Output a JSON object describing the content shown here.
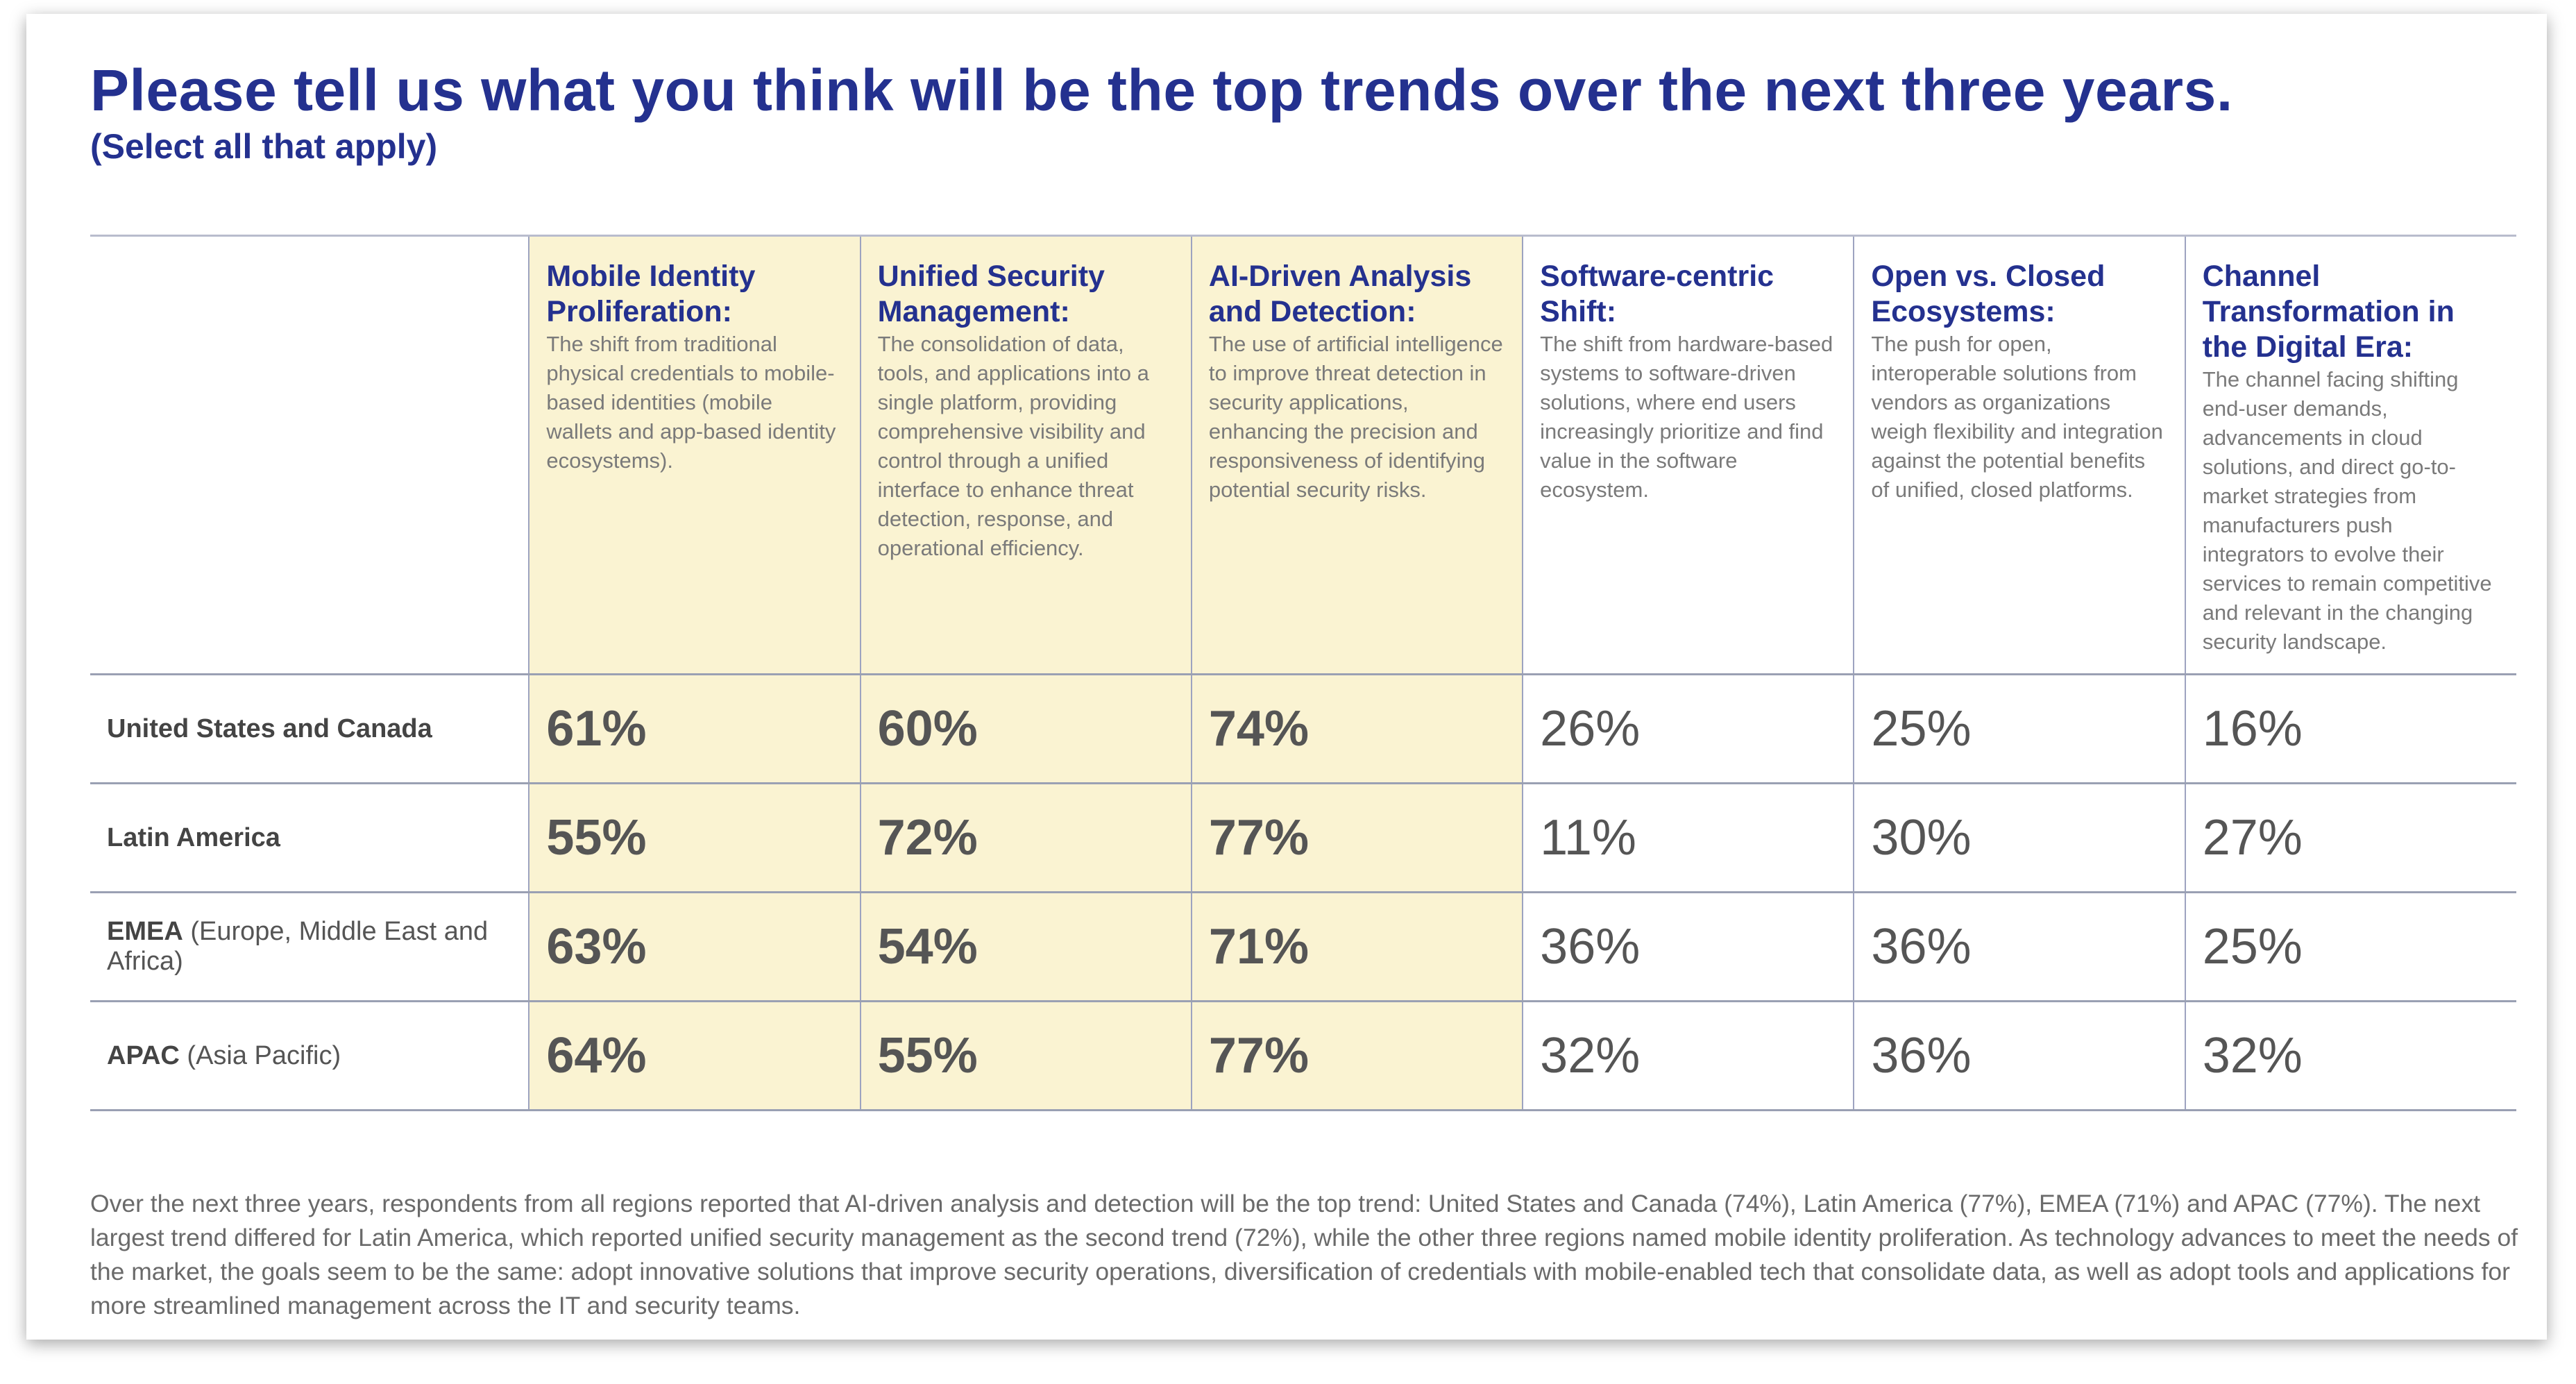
{
  "title": "Please tell us what you think will be the top trends over the next three years.",
  "subtitle": "(Select all that apply)",
  "columns": [
    {
      "title": "Mobile Identity Proliferation:",
      "desc": "The shift from traditional physical credentials to mobile-based identities (mobile wallets and app-based identity ecosystems).",
      "highlight": true
    },
    {
      "title": "Unified Security Management:",
      "desc": "The consolidation of data, tools, and applications into a single platform, providing comprehensive visibility and control through a unified interface to enhance threat detection, response, and operational efficiency.",
      "highlight": true
    },
    {
      "title": "AI-Driven Analysis and Detection:",
      "desc": "The use of artificial intelligence to improve threat detection in security applications, enhancing the precision and responsiveness of identifying potential security risks.",
      "highlight": true
    },
    {
      "title": "Software-centric Shift:",
      "desc": "The shift from hardware-based systems to software-driven solutions, where end users increasingly prioritize and find value in the software ecosystem.",
      "highlight": false
    },
    {
      "title": "Open vs. Closed Ecosystems:",
      "desc": "The push for open, interoperable solutions from vendors as organizations weigh flexibility and integration against the potential benefits of unified, closed platforms.",
      "highlight": false
    },
    {
      "title": "Channel Transformation in the Digital Era:",
      "desc": "The channel facing shifting end-user demands, advancements in cloud solutions, and direct go-to-market strategies from manufacturers push integrators to evolve their services to remain competitive and relevant in the changing security landscape.",
      "highlight": false
    }
  ],
  "rows": [
    {
      "region": "United States and Canada",
      "detail": "",
      "values": [
        "61%",
        "60%",
        "74%",
        "26%",
        "25%",
        "16%"
      ]
    },
    {
      "region": "Latin America",
      "detail": "",
      "values": [
        "55%",
        "72%",
        "77%",
        "11%",
        "30%",
        "27%"
      ]
    },
    {
      "region": "EMEA",
      "detail": "(Europe, Middle East and Africa)",
      "values": [
        "63%",
        "54%",
        "71%",
        "36%",
        "36%",
        "25%"
      ]
    },
    {
      "region": "APAC",
      "detail": "(Asia Pacific)",
      "values": [
        "64%",
        "55%",
        "77%",
        "32%",
        "36%",
        "32%"
      ]
    }
  ],
  "footer": "Over the next three years, respondents from all regions reported that AI-driven analysis and detection will be the top trend: United States and Canada (74%), Latin America (77%), EMEA (71%) and APAC (77%). The next largest trend differed for Latin America, which reported unified security management as the second trend (72%), while the other three regions named mobile identity proliferation. As technology advances to meet the needs of the market, the goals seem to be the same: adopt innovative solutions that improve security operations, diversification of credentials with mobile-enabled tech that consolidate data, as well as adopt tools and applications for more streamlined management across the IT and security teams.",
  "colors": {
    "title": "#24318f",
    "highlight": "#faf3d2",
    "border": "#9da3c0"
  }
}
